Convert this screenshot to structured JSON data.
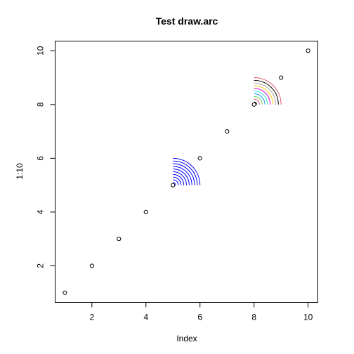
{
  "chart_data": {
    "type": "scatter",
    "title": "Test draw.arc",
    "xlabel": "Index",
    "ylabel": "1:10",
    "xlim": [
      0.64,
      10.36
    ],
    "ylim": [
      0.64,
      10.36
    ],
    "x_ticks": [
      2,
      4,
      6,
      8,
      10
    ],
    "y_ticks": [
      2,
      4,
      6,
      8,
      10
    ],
    "grid": false,
    "points": [
      {
        "x": 1,
        "y": 1
      },
      {
        "x": 2,
        "y": 2
      },
      {
        "x": 3,
        "y": 3
      },
      {
        "x": 4,
        "y": 4
      },
      {
        "x": 5,
        "y": 5
      },
      {
        "x": 6,
        "y": 6
      },
      {
        "x": 7,
        "y": 7
      },
      {
        "x": 8,
        "y": 8
      },
      {
        "x": 9,
        "y": 9
      },
      {
        "x": 10,
        "y": 10
      }
    ],
    "arc_groups": [
      {
        "center": {
          "x": 5,
          "y": 5
        },
        "angle_range_deg": [
          0,
          90
        ],
        "radii": [
          0.1,
          0.2,
          0.3,
          0.4,
          0.5,
          0.6,
          0.7,
          0.8,
          0.9,
          1.0
        ],
        "colors": [
          "#0000FF"
        ]
      },
      {
        "center": {
          "x": 8,
          "y": 8
        },
        "angle_range_deg": [
          0,
          90
        ],
        "radii": [
          0.1,
          0.2,
          0.3,
          0.4,
          0.5,
          0.6,
          0.7,
          0.8,
          0.9,
          1.0
        ],
        "colors": [
          "#000000",
          "#DF536B",
          "#61D04F",
          "#2297E6",
          "#28E2E5",
          "#CD0BBC",
          "#F5C710",
          "#9E9E9E",
          "#000000",
          "#DF536B"
        ]
      }
    ]
  }
}
